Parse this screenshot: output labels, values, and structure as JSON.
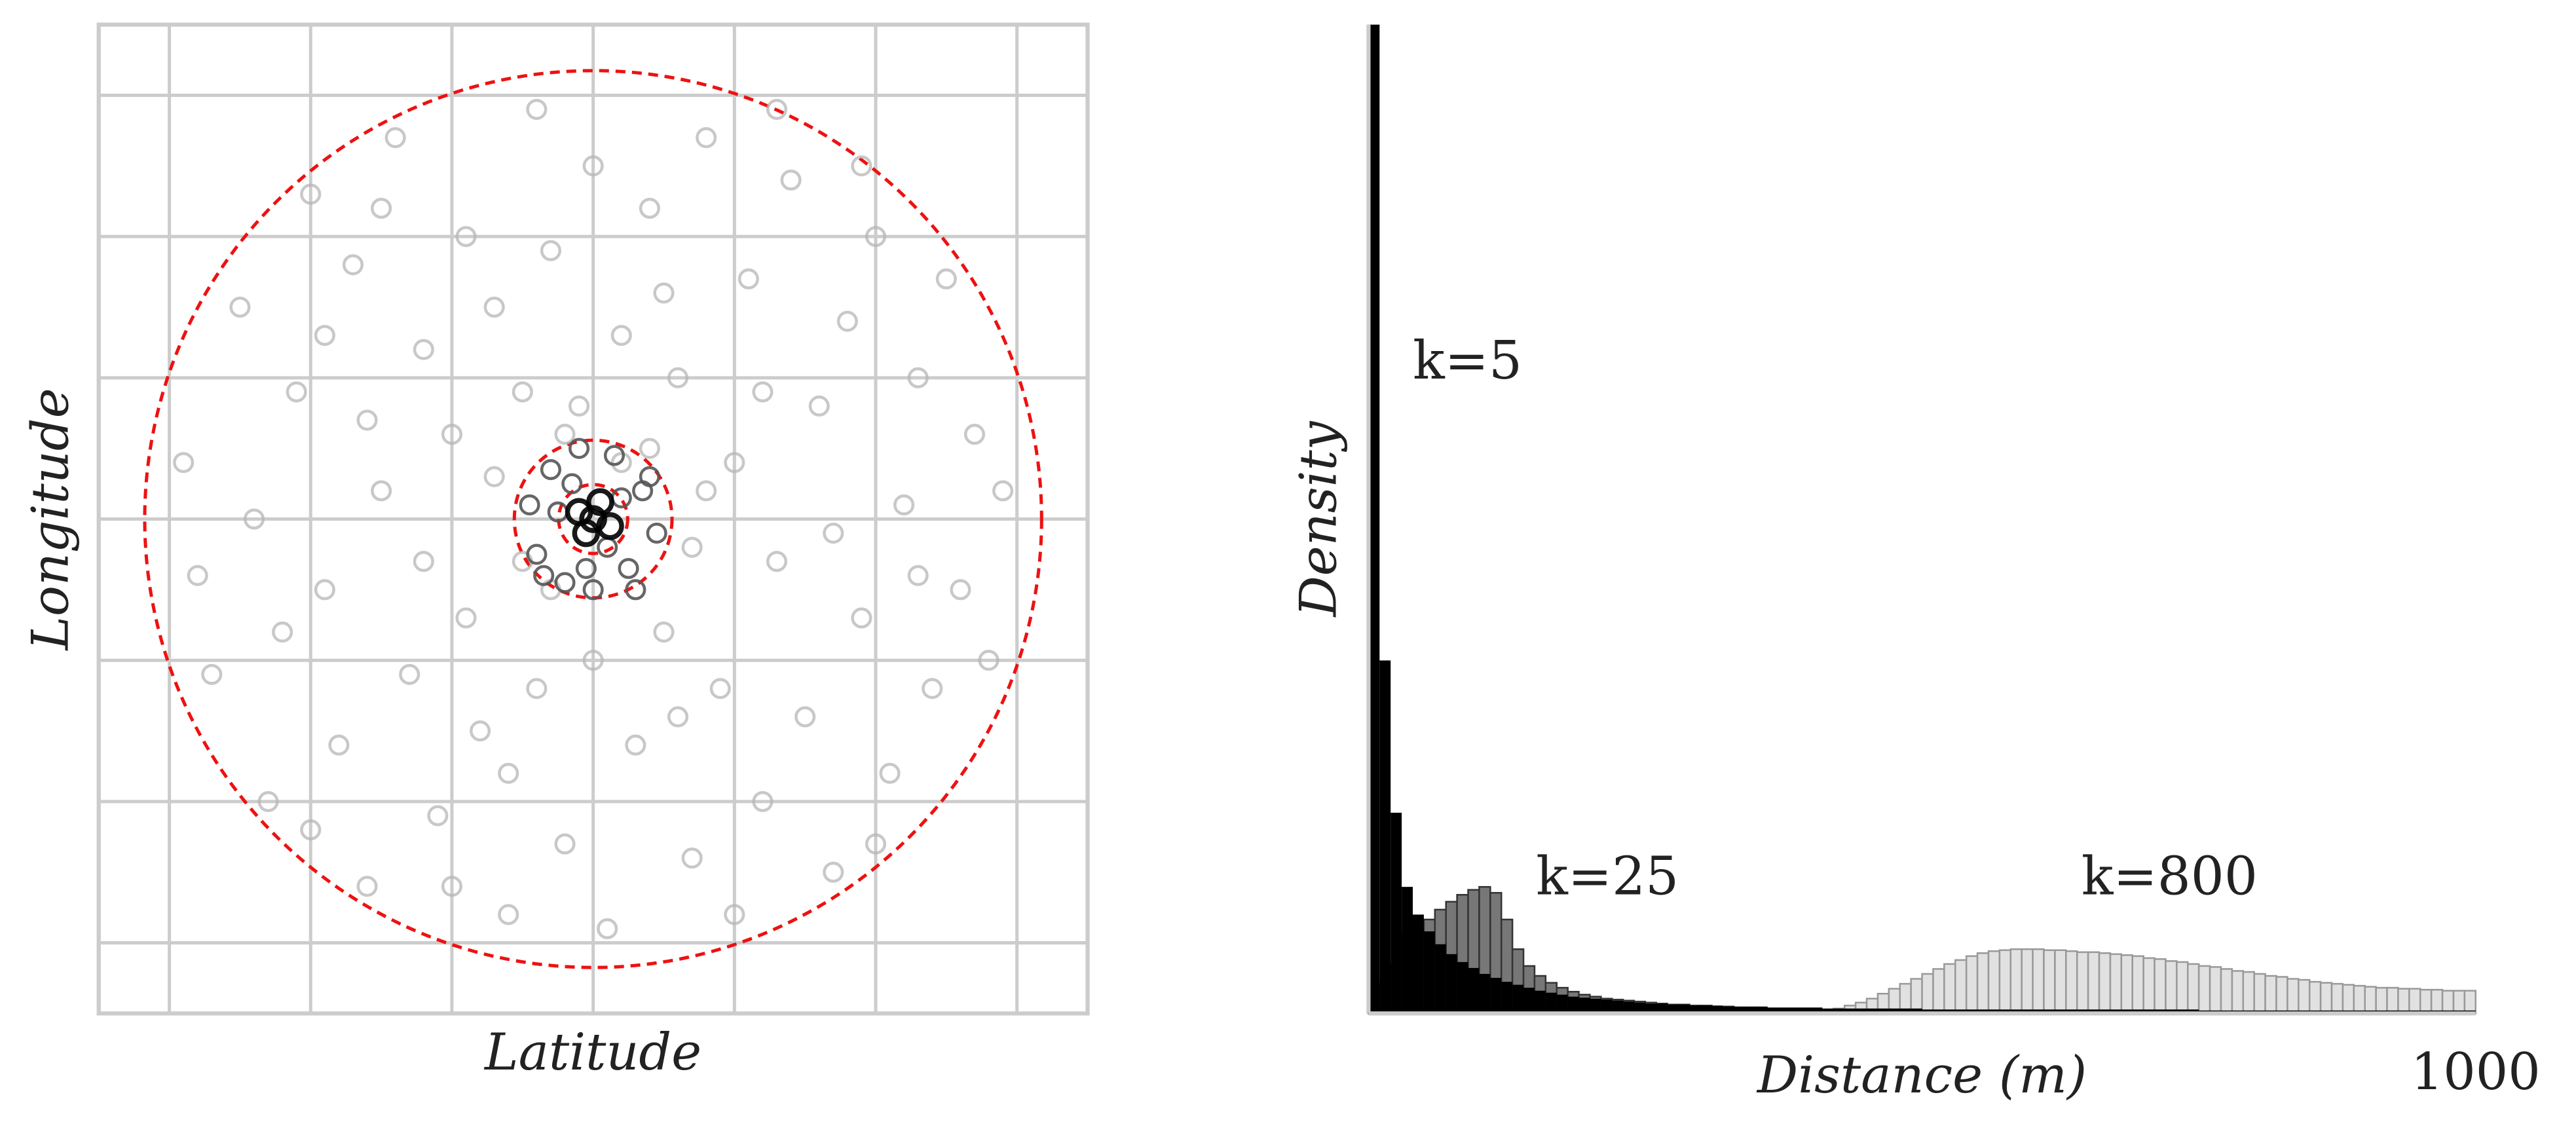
{
  "chart_data": [
    {
      "type": "scatter",
      "xlabel": "Latitude",
      "ylabel": "Longitude",
      "xlim": [
        -3.5,
        3.5
      ],
      "ylim": [
        -3.5,
        3.5
      ],
      "xticks": [
        -3,
        -2,
        -1,
        0,
        1,
        2,
        3
      ],
      "yticks": [
        -3,
        -2,
        -1,
        0,
        1,
        2,
        3
      ],
      "grid": true,
      "series": [
        {
          "color": "#b5b5b5",
          "x": [
            -2.9,
            -2.7,
            -2.5,
            -2.3,
            -2.1,
            -2.0,
            -1.9,
            -1.8,
            -1.7,
            -1.6,
            -1.5,
            -1.4,
            -1.3,
            -1.2,
            -1.1,
            -1.0,
            -0.9,
            -0.9,
            -0.8,
            -0.7,
            -0.6,
            -0.5,
            -0.4,
            -0.4,
            -0.3,
            -0.2,
            -0.1,
            0.0,
            0.0,
            0.1,
            0.2,
            0.3,
            0.4,
            0.5,
            0.6,
            0.7,
            0.8,
            0.9,
            1.0,
            1.1,
            1.2,
            1.3,
            1.4,
            1.5,
            1.6,
            1.7,
            1.8,
            1.9,
            2.0,
            2.1,
            2.2,
            2.3,
            2.4,
            2.5,
            2.6,
            2.7,
            2.8,
            2.9,
            -2.8,
            -2.4,
            -2.2,
            -1.6,
            -1.2,
            -0.7,
            0.7,
            1.2,
            1.7,
            2.3,
            -0.3,
            0.4,
            0.8,
            -1.0,
            1.0,
            -2.0,
            2.0,
            -1.5,
            1.3,
            -0.6,
            0.6,
            -1.9,
            1.9,
            0.2,
            -0.2,
            0.5,
            -0.5
          ],
          "y": [
            0.4,
            -1.1,
            1.5,
            -2.0,
            0.9,
            2.3,
            -0.5,
            -1.6,
            1.8,
            -2.6,
            0.2,
            2.7,
            -1.1,
            1.2,
            -2.1,
            0.6,
            2.0,
            -0.7,
            -1.5,
            1.5,
            -2.8,
            0.9,
            2.9,
            -1.2,
            1.9,
            -2.3,
            0.8,
            2.5,
            -1.0,
            -2.9,
            1.3,
            -1.6,
            2.2,
            -0.8,
            1.0,
            -2.4,
            2.7,
            -1.2,
            0.4,
            1.7,
            -2.0,
            -0.3,
            2.4,
            -1.4,
            0.8,
            -2.5,
            1.4,
            -0.7,
            2.0,
            -1.8,
            0.1,
            1.0,
            -1.2,
            1.7,
            -0.5,
            0.6,
            -1.0,
            0.2,
            -0.4,
            0.0,
            -0.8,
            0.7,
            -0.3,
            0.3,
            -0.2,
            0.9,
            -0.1,
            -0.4,
            -0.5,
            0.5,
            0.2,
            -2.6,
            -2.8,
            -2.2,
            -2.3,
            2.2,
            2.9,
            -1.8,
            -1.4,
            1.3,
            2.5,
            0.4,
            0.6,
            1.6,
            -0.3
          ]
        },
        {
          "color": "#555555",
          "x": [
            -0.45,
            -0.4,
            -0.3,
            -0.2,
            -0.1,
            0.0,
            0.15,
            0.25,
            0.35,
            0.45,
            0.4,
            -0.35,
            0.1,
            -0.15,
            0.2,
            -0.25,
            0.3,
            -0.05
          ],
          "y": [
            0.1,
            -0.25,
            0.35,
            -0.45,
            0.5,
            -0.5,
            0.45,
            -0.35,
            0.2,
            -0.1,
            0.3,
            -0.4,
            -0.2,
            0.25,
            0.15,
            0.05,
            -0.5,
            -0.35
          ]
        },
        {
          "color": "#000000",
          "x": [
            -0.1,
            0.05,
            0.12,
            -0.05,
            0.0
          ],
          "y": [
            0.05,
            0.12,
            -0.05,
            -0.1,
            0.0
          ]
        }
      ]
    },
    {
      "type": "histogram",
      "xlabel": "Distance (m)",
      "ylabel": "Density",
      "xlim": [
        0,
        1000
      ],
      "ylim": [
        0,
        100
      ],
      "xticks": [
        1000
      ],
      "annotations": [
        "k=5",
        "k=25",
        "k=800"
      ],
      "bins": [
        0,
        10,
        20,
        30,
        40,
        50,
        60,
        70,
        80,
        90,
        100,
        110,
        120,
        130,
        140,
        150,
        160,
        170,
        180,
        190,
        200,
        210,
        220,
        230,
        240,
        250,
        260,
        270,
        280,
        290,
        300,
        310,
        320,
        330,
        340,
        350,
        360,
        370,
        380,
        390,
        400,
        410,
        420,
        430,
        440,
        450,
        460,
        470,
        480,
        490,
        500,
        510,
        520,
        530,
        540,
        550,
        560,
        570,
        580,
        590,
        600,
        610,
        620,
        630,
        640,
        650,
        660,
        670,
        680,
        690,
        700,
        710,
        720,
        730,
        740,
        750,
        760,
        770,
        780,
        790,
        800,
        810,
        820,
        830,
        840,
        850,
        860,
        870,
        880,
        890,
        900,
        910,
        920,
        930,
        940,
        950,
        960,
        970,
        980,
        990,
        1000
      ],
      "series": [
        {
          "color": "#d9d9d9",
          "values": [
            0,
            0,
            0,
            0,
            0,
            0,
            0,
            0,
            0,
            0,
            0,
            0,
            0,
            0,
            0,
            0,
            0,
            0,
            0,
            0,
            0,
            0,
            0,
            0,
            0,
            0,
            0,
            0,
            0,
            0,
            0,
            0,
            0,
            0,
            0,
            0,
            0,
            0,
            0.1,
            0.1,
            0.2,
            0.3,
            0.5,
            0.8,
            1.1,
            1.5,
            2,
            2.5,
            3,
            3.5,
            4,
            4.5,
            5,
            5.4,
            5.8,
            6.1,
            6.3,
            6.4,
            6.5,
            6.5,
            6.5,
            6.4,
            6.4,
            6.3,
            6.2,
            6.2,
            6.1,
            6,
            5.9,
            5.8,
            5.6,
            5.5,
            5.3,
            5.2,
            5,
            4.8,
            4.7,
            4.5,
            4.3,
            4.2,
            4,
            3.8,
            3.7,
            3.5,
            3.4,
            3.2,
            3.1,
            3,
            2.9,
            2.8,
            2.7,
            2.6,
            2.6,
            2.5,
            2.5,
            2.4,
            2.4,
            2.3,
            2.3,
            2.3
          ]
        },
        {
          "color": "#777777",
          "values": [
            1,
            3,
            5,
            8,
            8.6,
            9.5,
            10.5,
            11.3,
            12,
            12.5,
            12.8,
            12.2,
            9.5,
            6.5,
            4.8,
            3.8,
            3.1,
            2.6,
            2.2,
            1.9,
            1.7,
            1.5,
            1.4,
            1.3,
            1.2,
            1.1,
            1.0,
            0.9,
            0.9,
            0.8,
            0.8,
            0.7,
            0.7,
            0.6,
            0.6,
            0.6,
            0.5,
            0.5,
            0.5,
            0.4,
            0.4,
            0.4,
            0.3,
            0.3,
            0.3,
            0.3,
            0.2,
            0.2,
            0.2,
            0.2,
            0.2,
            0.1,
            0.1,
            0.1,
            0.1,
            0.1,
            0.1,
            0.1,
            0.1,
            0.1,
            0,
            0,
            0,
            0,
            0,
            0,
            0,
            0,
            0,
            0,
            0,
            0,
            0,
            0,
            0,
            0,
            0,
            0,
            0,
            0,
            0,
            0,
            0,
            0,
            0,
            0,
            0,
            0,
            0,
            0,
            0,
            0,
            0,
            0,
            0,
            0,
            0,
            0,
            0,
            0
          ]
        },
        {
          "color": "#000000",
          "values": [
            100,
            35.7,
            20.3,
            12.8,
            10,
            8.3,
            7,
            6,
            5.2,
            4.6,
            4,
            3.6,
            3.2,
            2.9,
            2.6,
            2.3,
            2.1,
            1.9,
            1.7,
            1.6,
            1.5,
            1.4,
            1.3,
            1.2,
            1.1,
            1.0,
            1.0,
            0.9,
            0.9,
            0.8,
            0.8,
            0.8,
            0.7,
            0.7,
            0.7,
            0.7,
            0.6,
            0.6,
            0.6,
            0.6,
            0.6,
            0.5,
            0.5,
            0.5,
            0.5,
            0.5,
            0.5,
            0.5,
            0.5,
            0.5,
            0.4,
            0.4,
            0.4,
            0.4,
            0.4,
            0.4,
            0.4,
            0.4,
            0.4,
            0.4,
            0.4,
            0.4,
            0.4,
            0.4,
            0.4,
            0.4,
            0.4,
            0.4,
            0.4,
            0.4,
            0.4,
            0.4,
            0.4,
            0.4,
            0.4,
            0.3,
            0.3,
            0.3,
            0.3,
            0.3,
            0.3,
            0.3,
            0.3,
            0.3,
            0.3,
            0.3,
            0.3,
            0.3,
            0.3,
            0.3,
            0.3,
            0.3,
            0.3,
            0.3,
            0.3,
            0.3,
            0.3,
            0.3,
            0.3,
            0.3
          ]
        }
      ]
    }
  ]
}
